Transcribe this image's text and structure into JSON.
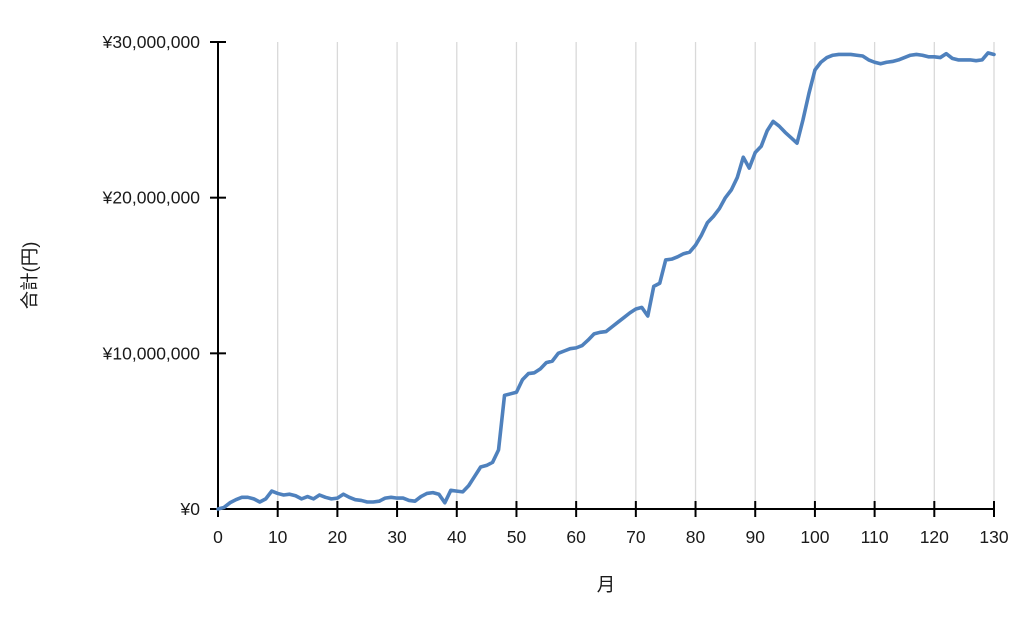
{
  "chart_data": {
    "type": "line",
    "title": "",
    "xlabel": "月",
    "ylabel": "合計(円)",
    "xlim": [
      0,
      130
    ],
    "ylim": [
      0,
      30000000
    ],
    "x_tick_labels": [
      "0",
      "10",
      "20",
      "30",
      "40",
      "50",
      "60",
      "70",
      "80",
      "90",
      "100",
      "110",
      "120",
      "130"
    ],
    "x_tick_values": [
      0,
      10,
      20,
      30,
      40,
      50,
      60,
      70,
      80,
      90,
      100,
      110,
      120,
      130
    ],
    "y_tick_labels": [
      "¥0",
      "¥10,000,000",
      "¥20,000,000",
      "¥30,000,000"
    ],
    "y_tick_values": [
      0,
      10000000,
      20000000,
      30000000
    ],
    "grid": "vertical-only",
    "legend": "none",
    "line_color": "#4f81bd",
    "grid_color": "#d9d9d9",
    "axis_color": "#000000",
    "text_color": "#1a1a1a",
    "x": [
      0,
      1,
      2,
      3,
      4,
      5,
      6,
      7,
      8,
      9,
      10,
      11,
      12,
      13,
      14,
      15,
      16,
      17,
      18,
      19,
      20,
      21,
      22,
      23,
      24,
      25,
      26,
      27,
      28,
      29,
      30,
      31,
      32,
      33,
      34,
      35,
      36,
      37,
      38,
      39,
      40,
      41,
      42,
      43,
      44,
      45,
      46,
      47,
      48,
      49,
      50,
      51,
      52,
      53,
      54,
      55,
      56,
      57,
      58,
      59,
      60,
      61,
      62,
      63,
      64,
      65,
      66,
      67,
      68,
      69,
      70,
      71,
      72,
      73,
      74,
      75,
      76,
      77,
      78,
      79,
      80,
      81,
      82,
      83,
      84,
      85,
      86,
      87,
      88,
      89,
      90,
      91,
      92,
      93,
      94,
      95,
      96,
      97,
      98,
      99,
      100,
      101,
      102,
      103,
      104,
      105,
      106,
      107,
      108,
      109,
      110,
      111,
      112,
      113,
      114,
      115,
      116,
      117,
      118,
      119,
      120,
      121,
      122,
      123,
      124,
      125,
      126,
      127,
      128,
      129,
      130
    ],
    "series": [
      {
        "name": "合計",
        "values": [
          0,
          100000,
          400000,
          600000,
          750000,
          750000,
          650000,
          450000,
          650000,
          1150000,
          1000000,
          900000,
          950000,
          850000,
          650000,
          800000,
          650000,
          900000,
          750000,
          650000,
          700000,
          950000,
          750000,
          600000,
          550000,
          450000,
          450000,
          500000,
          700000,
          750000,
          700000,
          700000,
          550000,
          500000,
          800000,
          1000000,
          1050000,
          950000,
          400000,
          1200000,
          1150000,
          1100000,
          1500000,
          2100000,
          2700000,
          2800000,
          3000000,
          3800000,
          7300000,
          7400000,
          7500000,
          8300000,
          8700000,
          8750000,
          9000000,
          9400000,
          9500000,
          10000000,
          10150000,
          10300000,
          10350000,
          10500000,
          10850000,
          11250000,
          11350000,
          11400000,
          11700000,
          12000000,
          12300000,
          12600000,
          12850000,
          12950000,
          12400000,
          14300000,
          14500000,
          16000000,
          16050000,
          16200000,
          16400000,
          16500000,
          16950000,
          17600000,
          18400000,
          18800000,
          19300000,
          20000000,
          20500000,
          21300000,
          22600000,
          21900000,
          22900000,
          23300000,
          24300000,
          24900000,
          24600000,
          24200000,
          23850000,
          23500000,
          25000000,
          26700000,
          28200000,
          28700000,
          29000000,
          29150000,
          29200000,
          29200000,
          29200000,
          29150000,
          29100000,
          28850000,
          28700000,
          28600000,
          28700000,
          28750000,
          28850000,
          29000000,
          29150000,
          29200000,
          29150000,
          29050000,
          29050000,
          29000000,
          29250000,
          28950000,
          28850000,
          28850000,
          28850000,
          28800000,
          28850000,
          29300000,
          29200000
        ]
      }
    ]
  }
}
